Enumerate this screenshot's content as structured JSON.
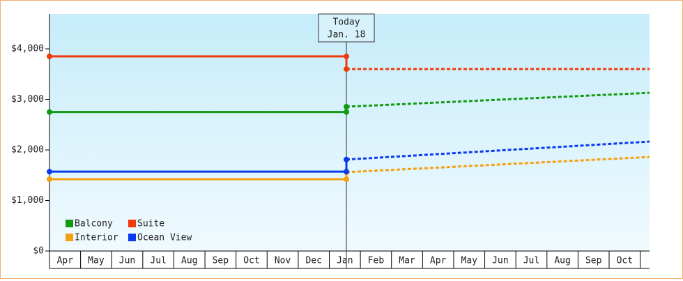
{
  "chart_data": {
    "type": "line",
    "categories": [
      "Apr",
      "May",
      "Jun",
      "Jul",
      "Aug",
      "Sep",
      "Oct",
      "Nov",
      "Dec",
      "Jan",
      "Feb",
      "Mar",
      "Apr",
      "May",
      "Jun",
      "Jul",
      "Aug",
      "Sep",
      "Oct"
    ],
    "xlim": [
      0,
      19.3
    ],
    "ylim": [
      0,
      4690
    ],
    "yticks": [
      {
        "value": 0,
        "label": "$0"
      },
      {
        "value": 1000,
        "label": "$1,000"
      },
      {
        "value": 2000,
        "label": "$2,000"
      },
      {
        "value": 3000,
        "label": "$3,000"
      },
      {
        "value": 4000,
        "label": "$4,000"
      }
    ],
    "today": {
      "x": 9.55,
      "label": "Today",
      "date": "Jan. 18"
    },
    "series": [
      {
        "name": "Balcony",
        "color": "#129a12",
        "x": [
          0,
          9.55,
          9.55,
          19.3
        ],
        "values": [
          2750,
          2750,
          2855,
          3130
        ]
      },
      {
        "name": "Suite",
        "color": "#f03a0a",
        "x": [
          0,
          9.55,
          9.55,
          19.3
        ],
        "values": [
          3850,
          3850,
          3600,
          3600
        ]
      },
      {
        "name": "Interior",
        "color": "#f5a010",
        "x": [
          0,
          9.55,
          9.55,
          19.3
        ],
        "values": [
          1420,
          1420,
          1560,
          1860
        ]
      },
      {
        "name": "Ocean View",
        "color": "#0a3af0",
        "x": [
          0,
          9.55,
          9.55,
          19.3
        ],
        "values": [
          1570,
          1570,
          1810,
          2165
        ]
      }
    ]
  }
}
